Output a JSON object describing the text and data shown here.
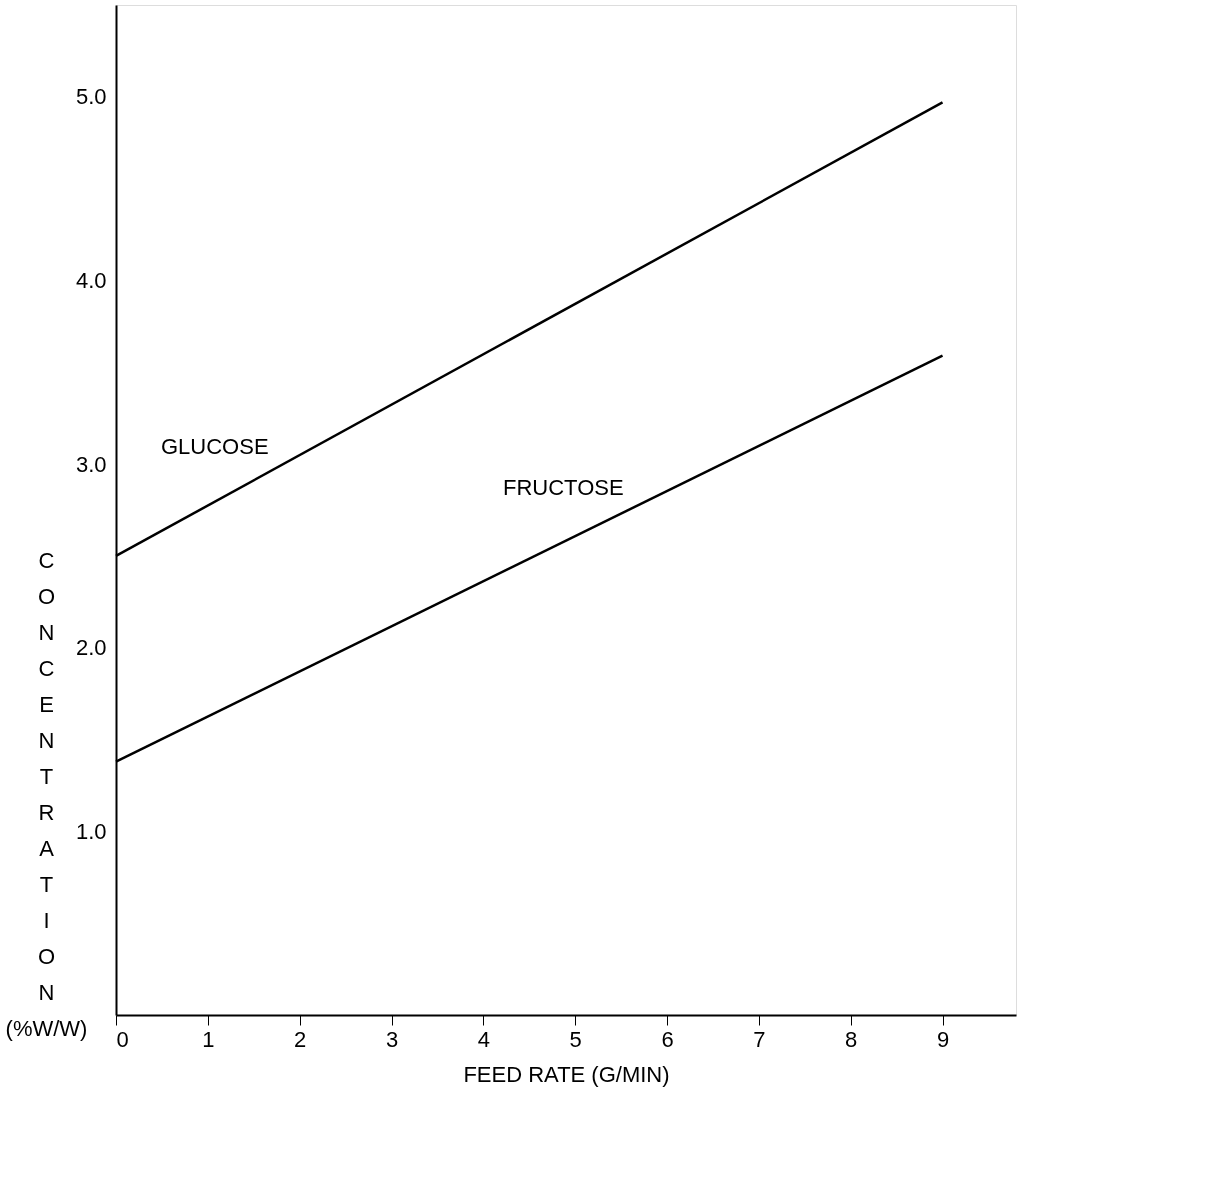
{
  "chart_data": {
    "type": "line",
    "xlabel": "FEED RATE (G/MIN)",
    "ylabel": "CONCENTRATION (%W/W)",
    "x": [
      0,
      9
    ],
    "series": [
      {
        "name": "GLUCOSE",
        "color": "#000000",
        "values": [
          2.5,
          4.97
        ]
      },
      {
        "name": "FRUCTOSE",
        "color": "#000000",
        "values": [
          1.38,
          3.59
        ]
      }
    ],
    "xlim": [
      0,
      9.8
    ],
    "ylim": [
      0,
      5.5
    ],
    "xticks": [
      0,
      1,
      2,
      3,
      4,
      5,
      6,
      7,
      8,
      9
    ],
    "yticks": [
      {
        "value": 1,
        "label": "1.0"
      },
      {
        "value": 2,
        "label": "2.0"
      },
      {
        "value": 3,
        "label": "3.0"
      },
      {
        "value": 4,
        "label": "4.0"
      },
      {
        "value": 5,
        "label": "5.0"
      }
    ],
    "grid": false,
    "marker": "none",
    "line_style": "solid"
  }
}
